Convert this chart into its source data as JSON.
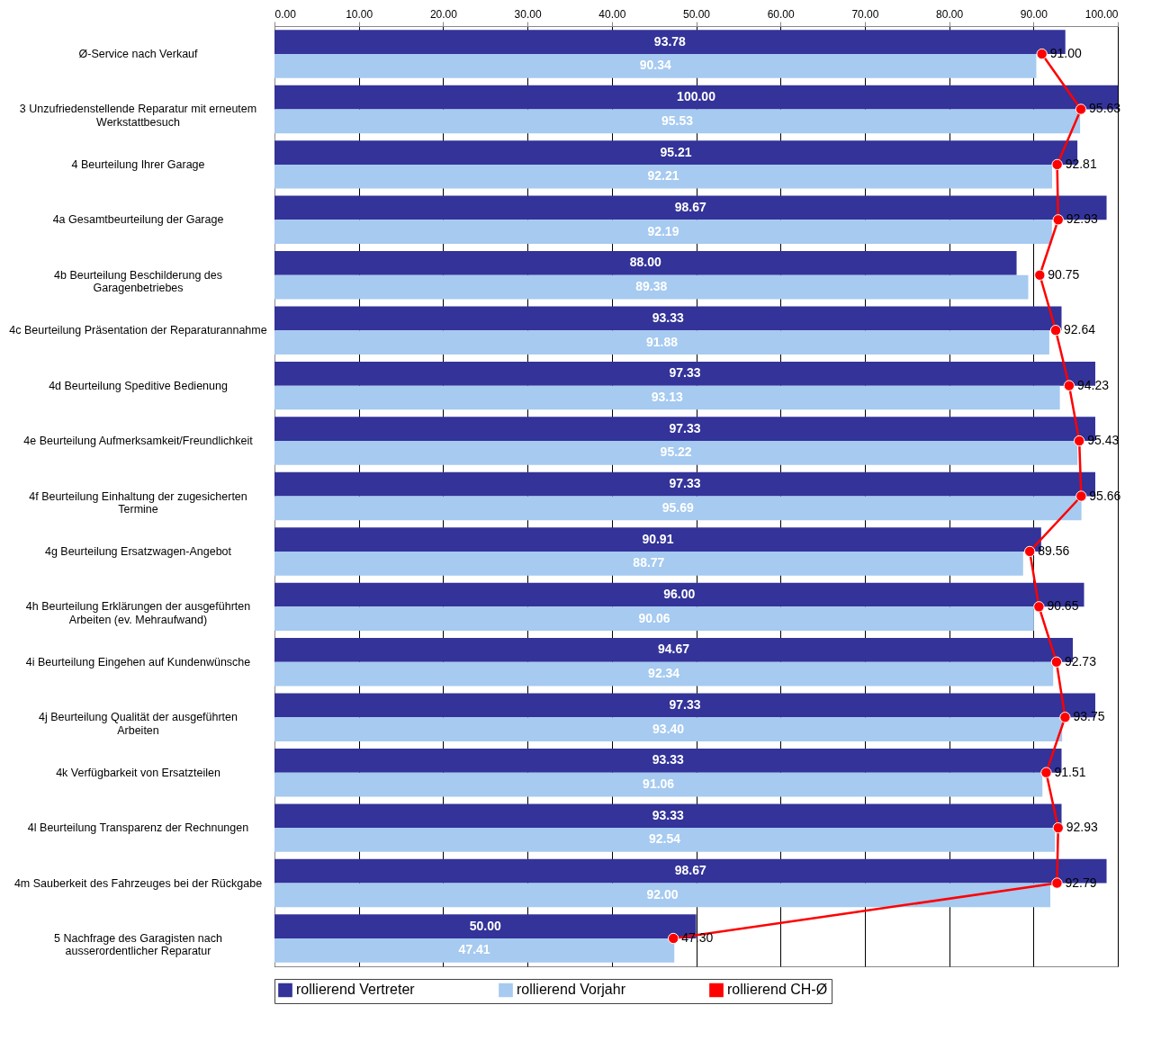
{
  "chart_data": {
    "type": "bar",
    "orientation": "horizontal",
    "categories": [
      "Ø-Service nach Verkauf",
      "3 Unzufriedenstellende Reparatur mit erneutem Werkstattbesuch",
      "4 Beurteilung Ihrer Garage",
      "4a Gesamtbeurteilung der Garage",
      "4b Beurteilung Beschilderung des Garagenbetriebes",
      "4c Beurteilung Präsentation der Reparaturannahme",
      "4d Beurteilung Speditive Bedienung",
      "4e Beurteilung Aufmerksamkeit/Freundlichkeit",
      "4f Beurteilung Einhaltung der zugesicherten Termine",
      "4g Beurteilung Ersatzwagen-Angebot",
      "4h Beurteilung Erklärungen der ausgeführten Arbeiten (ev. Mehraufwand)",
      "4i Beurteilung Eingehen auf Kundenwünsche",
      "4j Beurteilung Qualität der ausgeführten Arbeiten",
      "4k Verfügbarkeit von Ersatzteilen",
      "4l Beurteilung Transparenz der Rechnungen",
      "4m Sauberkeit des Fahrzeuges bei der Rückgabe",
      "5 Nachfrage des Garagisten nach ausserordentlicher Reparatur"
    ],
    "series": [
      {
        "name": "rollierend Vertreter",
        "color": "#333399",
        "values": [
          93.78,
          100.0,
          95.21,
          98.67,
          88.0,
          93.33,
          97.33,
          97.33,
          97.33,
          90.91,
          96.0,
          94.67,
          97.33,
          93.33,
          93.33,
          98.67,
          50.0
        ],
        "value_labels": [
          "93.78",
          "100.00",
          "95.21",
          "98.67",
          "88.00",
          "93.33",
          "97.33",
          "97.33",
          "97.33",
          "90.91",
          "96.00",
          "94.67",
          "97.33",
          "93.33",
          "93.33",
          "98.67",
          "50.00"
        ]
      },
      {
        "name": "rollierend Vorjahr",
        "color": "#a6caf0",
        "values": [
          90.34,
          95.53,
          92.21,
          92.19,
          89.38,
          91.88,
          93.13,
          95.22,
          95.69,
          88.77,
          90.06,
          92.34,
          93.4,
          91.06,
          92.54,
          92.0,
          47.41
        ],
        "value_labels": [
          "90.34",
          "95.53",
          "92.21",
          "92.19",
          "89.38",
          "91.88",
          "93.13",
          "95.22",
          "95.69",
          "88.77",
          "90.06",
          "92.34",
          "93.40",
          "91.06",
          "92.54",
          "92.00",
          "47.41"
        ]
      },
      {
        "name": "rollierend CH-Ø",
        "type": "line",
        "color": "#ff0000",
        "marker": "circle",
        "line_style": "solid",
        "values": [
          91.0,
          95.63,
          92.81,
          92.93,
          90.75,
          92.64,
          94.23,
          95.43,
          95.66,
          89.56,
          90.65,
          92.73,
          93.75,
          91.51,
          92.93,
          92.79,
          47.3
        ],
        "value_labels": [
          "91.00",
          "95.63",
          "92.81",
          "92.93",
          "90.75",
          "92.64",
          "94.23",
          "95.43",
          "95.66",
          "89.56",
          "90.65",
          "92.73",
          "93.75",
          "91.51",
          "92.93",
          "92.79",
          "47.30"
        ]
      }
    ],
    "xlim": [
      0,
      100
    ],
    "xticks": [
      {
        "value": 0,
        "label": "0.00"
      },
      {
        "value": 10,
        "label": "10.00"
      },
      {
        "value": 20,
        "label": "20.00"
      },
      {
        "value": 30,
        "label": "30.00"
      },
      {
        "value": 40,
        "label": "40.00"
      },
      {
        "value": 50,
        "label": "50.00"
      },
      {
        "value": 60,
        "label": "60.00"
      },
      {
        "value": 70,
        "label": "70.00"
      },
      {
        "value": 80,
        "label": "80.00"
      },
      {
        "value": 90,
        "label": "90.00"
      },
      {
        "value": 100,
        "label": "100.00"
      }
    ],
    "grid": "x",
    "legend": "bottom"
  }
}
